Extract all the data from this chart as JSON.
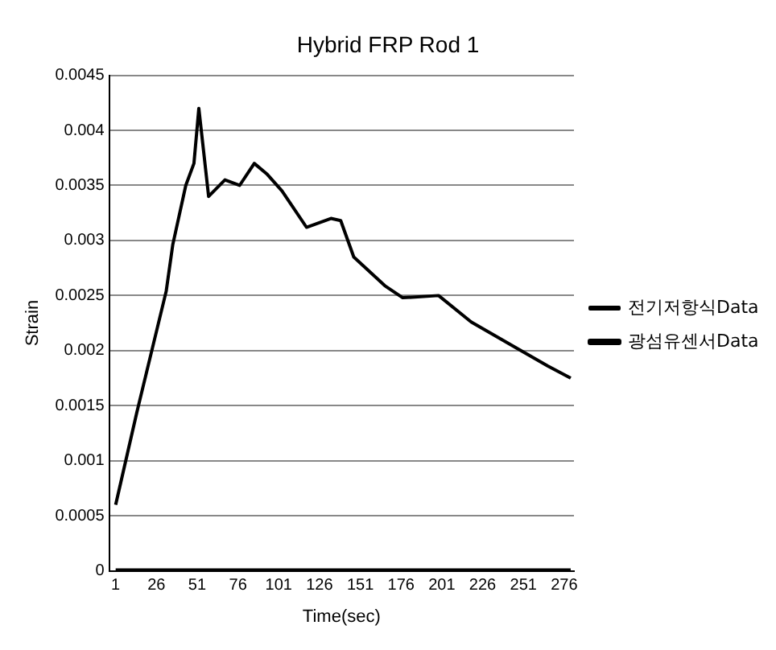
{
  "chart_data": {
    "type": "line",
    "title": "Hybrid FRP Rod 1",
    "xlabel": "Time(sec)",
    "ylabel": "Strain",
    "xlim": [
      -3,
      282
    ],
    "xticks": [
      1,
      26,
      51,
      76,
      101,
      126,
      151,
      176,
      201,
      226,
      251,
      276
    ],
    "ylim": [
      0,
      0.0045
    ],
    "yticks": [
      0,
      0.0005,
      0.001,
      0.0015,
      0.002,
      0.0025,
      0.003,
      0.0035,
      0.004,
      0.0045
    ],
    "grid": "y",
    "legend": "right",
    "marker": "none",
    "line_style": "solid",
    "series": [
      {
        "name": "전기저항식Data",
        "color": "#000000",
        "x": [
          1,
          14,
          32,
          36,
          44,
          49,
          52,
          58,
          68,
          77,
          86,
          94,
          103,
          118,
          133,
          139,
          147,
          166,
          177,
          199,
          219,
          246,
          266,
          280
        ],
        "values": [
          0.0006,
          0.00144,
          0.00254,
          0.00296,
          0.0035,
          0.0037,
          0.0042,
          0.0034,
          0.00355,
          0.0035,
          0.0037,
          0.0036,
          0.00345,
          0.00312,
          0.0032,
          0.00318,
          0.00285,
          0.00259,
          0.00248,
          0.0025,
          0.00226,
          0.00203,
          0.00186,
          0.00175
        ]
      },
      {
        "name": "광섬유센서Data",
        "color": "#000000",
        "x": [
          1,
          280
        ],
        "values": [
          0,
          0
        ]
      }
    ]
  }
}
